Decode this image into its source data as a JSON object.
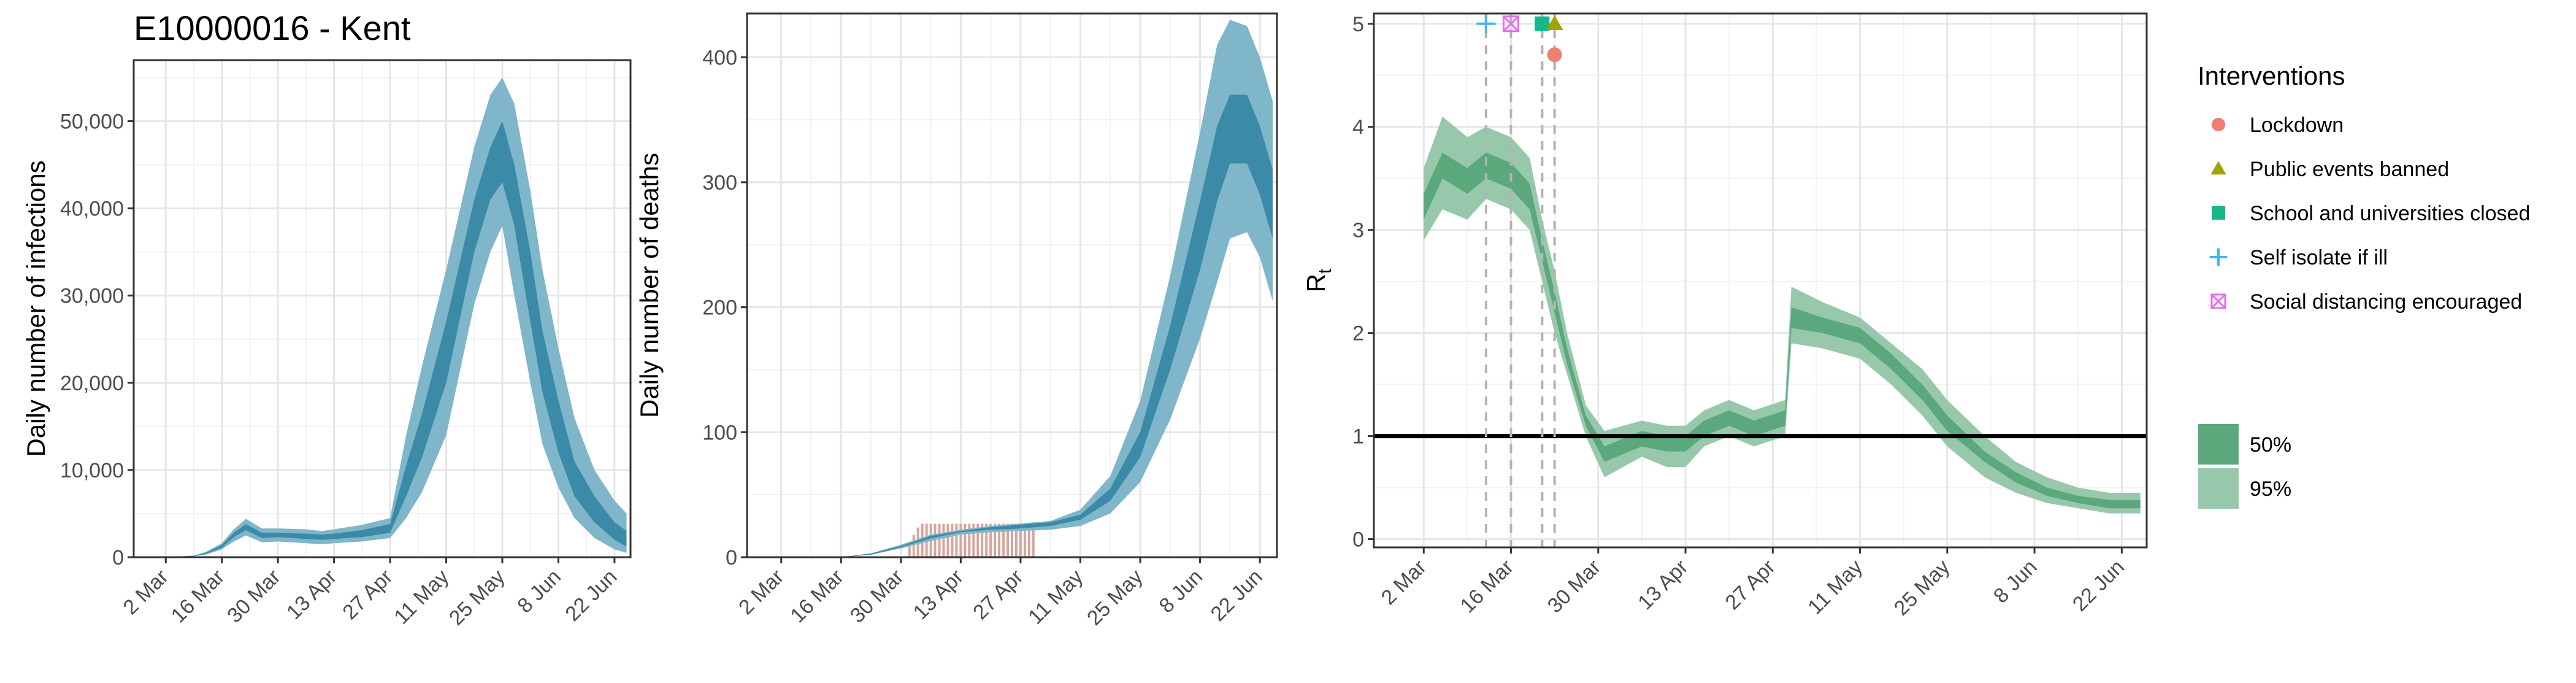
{
  "chart_data": [
    {
      "type": "area",
      "title": "E10000016 - Kent",
      "xlabel": "",
      "ylabel": "Daily number of infections",
      "x_ticks": [
        "2 Mar",
        "16 Mar",
        "30 Mar",
        "13 Apr",
        "27 Apr",
        "11 May",
        "25 May",
        "8 Jun",
        "22 Jun"
      ],
      "ylim": [
        0,
        57000
      ],
      "y_ticks": [
        "0",
        "10,000",
        "20,000",
        "30,000",
        "40,000",
        "50,000"
      ],
      "x_day_range": [
        -7,
        117
      ],
      "grid": true,
      "colors": {
        "band95": "#7fb6c9",
        "band50": "#3a8aa8"
      },
      "series": [
        {
          "name": "95%",
          "x": [
            "2 Mar",
            "9 Mar",
            "12 Mar",
            "16 Mar",
            "19 Mar",
            "22 Mar",
            "26 Mar",
            "30 Mar",
            "6 Apr",
            "10 Apr",
            "13 Apr",
            "20 Apr",
            "27 Apr",
            "1 May",
            "5 May",
            "11 May",
            "18 May",
            "22 May",
            "25 May",
            "28 May",
            "1 Jun",
            "4 Jun",
            "8 Jun",
            "12 Jun",
            "17 Jun",
            "22 Jun",
            "25 Jun"
          ],
          "lower": [
            0,
            100,
            300,
            900,
            1800,
            2500,
            1700,
            1800,
            1600,
            1500,
            1600,
            1800,
            2200,
            4500,
            7500,
            14000,
            29000,
            35000,
            38000,
            30000,
            20000,
            13000,
            8000,
            4500,
            2200,
            900,
            500
          ],
          "upper": [
            0,
            200,
            600,
            1600,
            3200,
            4400,
            3300,
            3300,
            3200,
            3000,
            3200,
            3700,
            4500,
            14000,
            22000,
            33000,
            47000,
            53000,
            55000,
            52000,
            42000,
            33000,
            24000,
            16000,
            10000,
            6500,
            5000
          ]
        },
        {
          "name": "50%",
          "x": [
            "2 Mar",
            "9 Mar",
            "12 Mar",
            "16 Mar",
            "19 Mar",
            "22 Mar",
            "26 Mar",
            "30 Mar",
            "6 Apr",
            "10 Apr",
            "13 Apr",
            "20 Apr",
            "27 Apr",
            "1 May",
            "5 May",
            "11 May",
            "18 May",
            "22 May",
            "25 May",
            "28 May",
            "1 Jun",
            "4 Jun",
            "8 Jun",
            "12 Jun",
            "17 Jun",
            "22 Jun",
            "25 Jun"
          ],
          "lower": [
            0,
            130,
            380,
            1100,
            2300,
            3100,
            2200,
            2300,
            2100,
            2000,
            2100,
            2300,
            2800,
            7000,
            11500,
            20000,
            35000,
            41000,
            43000,
            38000,
            27000,
            19000,
            12000,
            7000,
            4000,
            2000,
            1200
          ],
          "upper": [
            0,
            170,
            500,
            1400,
            2800,
            3800,
            2800,
            2800,
            2700,
            2600,
            2700,
            3100,
            3800,
            10500,
            16500,
            27000,
            41000,
            47000,
            50000,
            45000,
            35000,
            26000,
            18000,
            11000,
            7000,
            4000,
            3000
          ]
        }
      ]
    },
    {
      "type": "area",
      "title": "",
      "xlabel": "",
      "ylabel": "Daily number of deaths",
      "x_ticks": [
        "2 Mar",
        "16 Mar",
        "30 Mar",
        "13 Apr",
        "27 Apr",
        "11 May",
        "25 May",
        "8 Jun",
        "22 Jun"
      ],
      "ylim": [
        0,
        435
      ],
      "y_ticks": [
        "0",
        "100",
        "200",
        "300",
        "400"
      ],
      "x_day_range": [
        -7,
        117
      ],
      "grid": true,
      "colors": {
        "band95": "#7fb6c9",
        "band50": "#3a8aa8",
        "bars": "#d7a49e"
      },
      "bars": {
        "x_range": [
          "1 Apr",
          "30 Apr"
        ],
        "values": [
          10,
          18,
          24,
          27,
          27,
          27,
          27,
          27,
          27,
          27,
          27,
          27,
          27,
          27,
          27,
          27,
          27,
          27,
          27,
          27,
          27,
          27,
          27,
          27,
          27,
          27,
          27,
          27,
          27,
          27
        ]
      },
      "series": [
        {
          "name": "95%",
          "x": [
            "16 Mar",
            "23 Mar",
            "30 Mar",
            "6 Apr",
            "13 Apr",
            "20 Apr",
            "27 Apr",
            "4 May",
            "11 May",
            "18 May",
            "25 May",
            "1 Jun",
            "8 Jun",
            "12 Jun",
            "15 Jun",
            "19 Jun",
            "22 Jun",
            "25 Jun"
          ],
          "lower": [
            0,
            2,
            7,
            13,
            18,
            20,
            21,
            22,
            25,
            35,
            60,
            110,
            175,
            220,
            255,
            260,
            240,
            205
          ],
          "upper": [
            0,
            3,
            10,
            18,
            22,
            25,
            27,
            29,
            38,
            65,
            125,
            225,
            340,
            410,
            430,
            425,
            400,
            365
          ]
        },
        {
          "name": "50%",
          "x": [
            "16 Mar",
            "23 Mar",
            "30 Mar",
            "6 Apr",
            "13 Apr",
            "20 Apr",
            "27 Apr",
            "4 May",
            "11 May",
            "18 May",
            "25 May",
            "1 Jun",
            "8 Jun",
            "12 Jun",
            "15 Jun",
            "19 Jun",
            "22 Jun",
            "25 Jun"
          ],
          "lower": [
            0,
            2,
            8,
            15,
            20,
            22,
            23,
            25,
            30,
            45,
            80,
            150,
            230,
            285,
            315,
            315,
            290,
            255
          ],
          "upper": [
            0,
            3,
            9,
            17,
            21,
            24,
            26,
            28,
            34,
            55,
            100,
            185,
            285,
            345,
            370,
            370,
            345,
            310
          ]
        }
      ]
    },
    {
      "type": "area",
      "title": "",
      "xlabel": "",
      "ylabel": "R",
      "ylabel_sub": "t",
      "x_ticks": [
        "2 Mar",
        "16 Mar",
        "30 Mar",
        "13 Apr",
        "27 Apr",
        "11 May",
        "25 May",
        "8 Jun",
        "22 Jun"
      ],
      "ylim": [
        -0.08,
        5.1
      ],
      "y_ticks": [
        "0",
        "1",
        "2",
        "3",
        "4",
        "5"
      ],
      "x_day_range": [
        -7,
        117
      ],
      "grid": true,
      "reference_line": 1,
      "colors": {
        "band95": "#98c8ac",
        "band50": "#5aa87c"
      },
      "series": [
        {
          "name": "95%",
          "x": [
            "2 Mar",
            "5 Mar",
            "9 Mar",
            "12 Mar",
            "16 Mar",
            "19 Mar",
            "21 Mar",
            "23 Mar",
            "25 Mar",
            "28 Mar",
            "31 Mar",
            "6 Apr",
            "10 Apr",
            "13 Apr",
            "16 Apr",
            "20 Apr",
            "24 Apr",
            "29 Apr",
            "30 Apr",
            "5 May",
            "11 May",
            "16 May",
            "21 May",
            "25 May",
            "31 May",
            "5 Jun",
            "10 Jun",
            "15 Jun",
            "20 Jun",
            "25 Jun"
          ],
          "lower": [
            2.9,
            3.2,
            3.1,
            3.3,
            3.2,
            3.0,
            2.5,
            2.0,
            1.6,
            1.0,
            0.6,
            0.8,
            0.7,
            0.7,
            0.9,
            1.0,
            0.9,
            1.0,
            1.9,
            1.85,
            1.75,
            1.5,
            1.2,
            0.9,
            0.6,
            0.45,
            0.35,
            0.3,
            0.25,
            0.25
          ],
          "upper": [
            3.6,
            4.1,
            3.9,
            4.0,
            3.9,
            3.7,
            3.1,
            2.6,
            2.0,
            1.3,
            1.05,
            1.15,
            1.1,
            1.1,
            1.25,
            1.35,
            1.25,
            1.35,
            2.45,
            2.3,
            2.15,
            1.9,
            1.65,
            1.35,
            1.0,
            0.75,
            0.6,
            0.5,
            0.45,
            0.45
          ]
        },
        {
          "name": "50%",
          "x": [
            "2 Mar",
            "5 Mar",
            "9 Mar",
            "12 Mar",
            "16 Mar",
            "19 Mar",
            "21 Mar",
            "23 Mar",
            "25 Mar",
            "28 Mar",
            "31 Mar",
            "6 Apr",
            "10 Apr",
            "13 Apr",
            "16 Apr",
            "20 Apr",
            "24 Apr",
            "29 Apr",
            "30 Apr",
            "5 May",
            "11 May",
            "16 May",
            "21 May",
            "25 May",
            "31 May",
            "5 Jun",
            "10 Jun",
            "15 Jun",
            "20 Jun",
            "25 Jun"
          ],
          "lower": [
            3.1,
            3.5,
            3.35,
            3.5,
            3.4,
            3.2,
            2.7,
            2.2,
            1.7,
            1.1,
            0.75,
            0.9,
            0.85,
            0.85,
            1.0,
            1.1,
            1.0,
            1.1,
            2.05,
            2.0,
            1.9,
            1.65,
            1.35,
            1.05,
            0.75,
            0.55,
            0.42,
            0.35,
            0.3,
            0.3
          ],
          "upper": [
            3.35,
            3.75,
            3.6,
            3.75,
            3.65,
            3.45,
            2.9,
            2.4,
            1.85,
            1.2,
            0.9,
            1.05,
            1.0,
            1.0,
            1.15,
            1.25,
            1.15,
            1.25,
            2.25,
            2.15,
            2.05,
            1.8,
            1.5,
            1.2,
            0.85,
            0.65,
            0.5,
            0.42,
            0.38,
            0.38
          ]
        }
      ],
      "interventions": [
        {
          "name": "Self isolate if ill",
          "date": "12 Mar",
          "marker": "plus",
          "color": "#3fb8e8",
          "y": 5.0
        },
        {
          "name": "Social distancing encouraged",
          "date": "16 Mar",
          "marker": "boxx",
          "color": "#e26cf0",
          "y": 5.0
        },
        {
          "name": "School and universities closed",
          "date": "21 Mar",
          "marker": "square",
          "color": "#14b88a",
          "y": 5.0
        },
        {
          "name": "Public events banned",
          "date": "23 Mar",
          "marker": "triangle",
          "color": "#a3a300",
          "y": 5.0
        },
        {
          "name": "Lockdown",
          "date": "23 Mar",
          "marker": "circle",
          "color": "#f07d72",
          "y": 4.7
        }
      ]
    }
  ],
  "legend": {
    "interventions_title": "Interventions",
    "interventions": [
      {
        "label": "Lockdown",
        "marker": "circle",
        "color": "#f07d72"
      },
      {
        "label": "Public events banned",
        "marker": "triangle",
        "color": "#a3a300"
      },
      {
        "label": "School and universities closed",
        "marker": "square",
        "color": "#14b88a"
      },
      {
        "label": "Self isolate if ill",
        "marker": "plus",
        "color": "#3fb8e8"
      },
      {
        "label": "Social distancing encouraged",
        "marker": "boxx",
        "color": "#e26cf0"
      }
    ],
    "bands": [
      {
        "label": "50%",
        "color": "#5aa87c"
      },
      {
        "label": "95%",
        "color": "#98c8ac"
      }
    ]
  }
}
